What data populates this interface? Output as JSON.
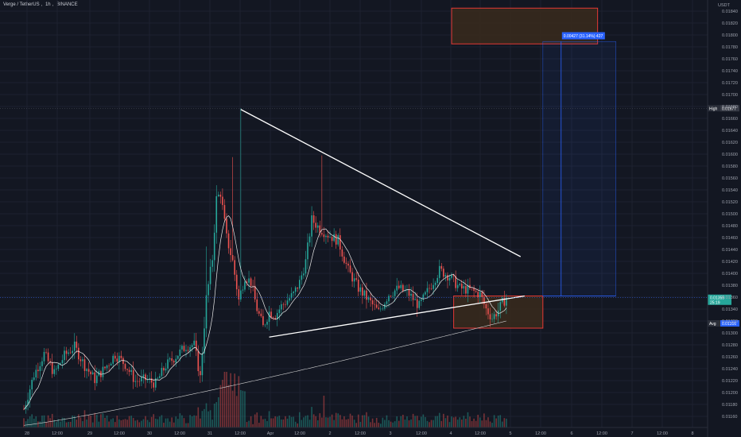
{
  "header": {
    "symbol": "Verge / TetherUS",
    "interval": "1h",
    "exchange": "BINANCE"
  },
  "price_axis": {
    "currency": "USDT",
    "labels": [
      "0.01840",
      "0.01820",
      "0.01800",
      "0.01780",
      "0.01760",
      "0.01740",
      "0.01720",
      "0.01700",
      "0.01680",
      "0.01660",
      "0.01640",
      "0.01620",
      "0.01600",
      "0.01580",
      "0.01560",
      "0.01540",
      "0.01520",
      "0.01500",
      "0.01480",
      "0.01460",
      "0.01440",
      "0.01420",
      "0.01400",
      "0.01380",
      "0.01360",
      "0.01340",
      "0.01320",
      "0.01300",
      "0.01280",
      "0.01260",
      "0.01240",
      "0.01220",
      "0.01200",
      "0.01180",
      "0.01160"
    ]
  },
  "time_axis": {
    "labels": [
      "28",
      "12:00",
      "29",
      "12:00",
      "30",
      "12:00",
      "31",
      "12:00",
      "Apr",
      "12:00",
      "2",
      "12:00",
      "3",
      "12:00",
      "4",
      "12:00",
      "5",
      "12:00",
      "6",
      "12:00",
      "7",
      "12:00",
      "8"
    ]
  },
  "tags": {
    "high_label": "High",
    "high_value": "0.01677",
    "avg_label": "Avg",
    "avg_value": "0.01316",
    "last_price": "0.01359",
    "countdown": "25:19",
    "target_label": "0.00427 (31.14%) 427"
  },
  "colors": {
    "background": "#131722",
    "up": "#26a69a",
    "down": "#ef5350",
    "trendline": "#ffffff",
    "box_border": "#e53935",
    "box_fill": "#3a2a1c",
    "projection": "#2962ff"
  },
  "chart_data": {
    "type": "candlestick",
    "symbol": "Verge / TetherUS",
    "interval": "1h",
    "ylim": [
      0.0115,
      0.0185
    ],
    "x_range_hours": [
      0,
      270
    ],
    "current_price": 0.01359,
    "high": 0.01677,
    "avg": 0.01316,
    "anchors": [
      [
        0,
        0.01172
      ],
      [
        5,
        0.0123
      ],
      [
        10,
        0.01265
      ],
      [
        15,
        0.01232
      ],
      [
        20,
        0.01262
      ],
      [
        25,
        0.01277
      ],
      [
        30,
        0.01245
      ],
      [
        35,
        0.01222
      ],
      [
        40,
        0.01241
      ],
      [
        45,
        0.01264
      ],
      [
        50,
        0.01247
      ],
      [
        55,
        0.01219
      ],
      [
        60,
        0.01222
      ],
      [
        65,
        0.01215
      ],
      [
        70,
        0.01245
      ],
      [
        75,
        0.01261
      ],
      [
        80,
        0.01278
      ],
      [
        84,
        0.0128
      ],
      [
        87,
        0.01225
      ],
      [
        90,
        0.01358
      ],
      [
        93,
        0.01425
      ],
      [
        95,
        0.01525
      ],
      [
        97,
        0.01535
      ],
      [
        100,
        0.0146
      ],
      [
        103,
        0.0142
      ],
      [
        106,
        0.01355
      ],
      [
        109,
        0.01395
      ],
      [
        112,
        0.01385
      ],
      [
        115,
        0.0134
      ],
      [
        118,
        0.0131
      ],
      [
        121,
        0.01335
      ],
      [
        124,
        0.0133
      ],
      [
        127,
        0.01345
      ],
      [
        130,
        0.01355
      ],
      [
        133,
        0.01365
      ],
      [
        136,
        0.01385
      ],
      [
        139,
        0.0142
      ],
      [
        142,
        0.0149
      ],
      [
        146,
        0.01475
      ],
      [
        150,
        0.01465
      ],
      [
        155,
        0.01455
      ],
      [
        160,
        0.01405
      ],
      [
        165,
        0.01375
      ],
      [
        170,
        0.01355
      ],
      [
        175,
        0.01335
      ],
      [
        180,
        0.01365
      ],
      [
        185,
        0.01375
      ],
      [
        190,
        0.01365
      ],
      [
        195,
        0.01345
      ],
      [
        200,
        0.01375
      ],
      [
        205,
        0.01405
      ],
      [
        210,
        0.01395
      ],
      [
        215,
        0.01375
      ],
      [
        220,
        0.01372
      ],
      [
        225,
        0.01365
      ],
      [
        228,
        0.0134
      ],
      [
        231,
        0.01325
      ],
      [
        234,
        0.01338
      ],
      [
        236,
        0.0135
      ],
      [
        238,
        0.01359
      ]
    ],
    "series": [
      {
        "name": "MA (fast)",
        "role": "moving-average"
      },
      {
        "name": "MA (slow)",
        "role": "moving-average"
      }
    ],
    "drawings": {
      "descending_trendline": {
        "from": [
          107,
          0.01675
        ],
        "to": [
          245,
          0.01428
        ]
      },
      "ascending_trendline": {
        "from": [
          121,
          0.01293
        ],
        "to": [
          247,
          0.01362
        ]
      },
      "support_zone": {
        "x_range": [
          212,
          256
        ],
        "price_range": [
          0.01308,
          0.01362
        ]
      },
      "target_zone": {
        "x_range": [
          211,
          283
        ],
        "price_range": [
          0.01785,
          0.01845
        ]
      },
      "projection": {
        "x_range": [
          256,
          292
        ],
        "price_range": [
          0.01362,
          0.01789
        ]
      }
    }
  }
}
